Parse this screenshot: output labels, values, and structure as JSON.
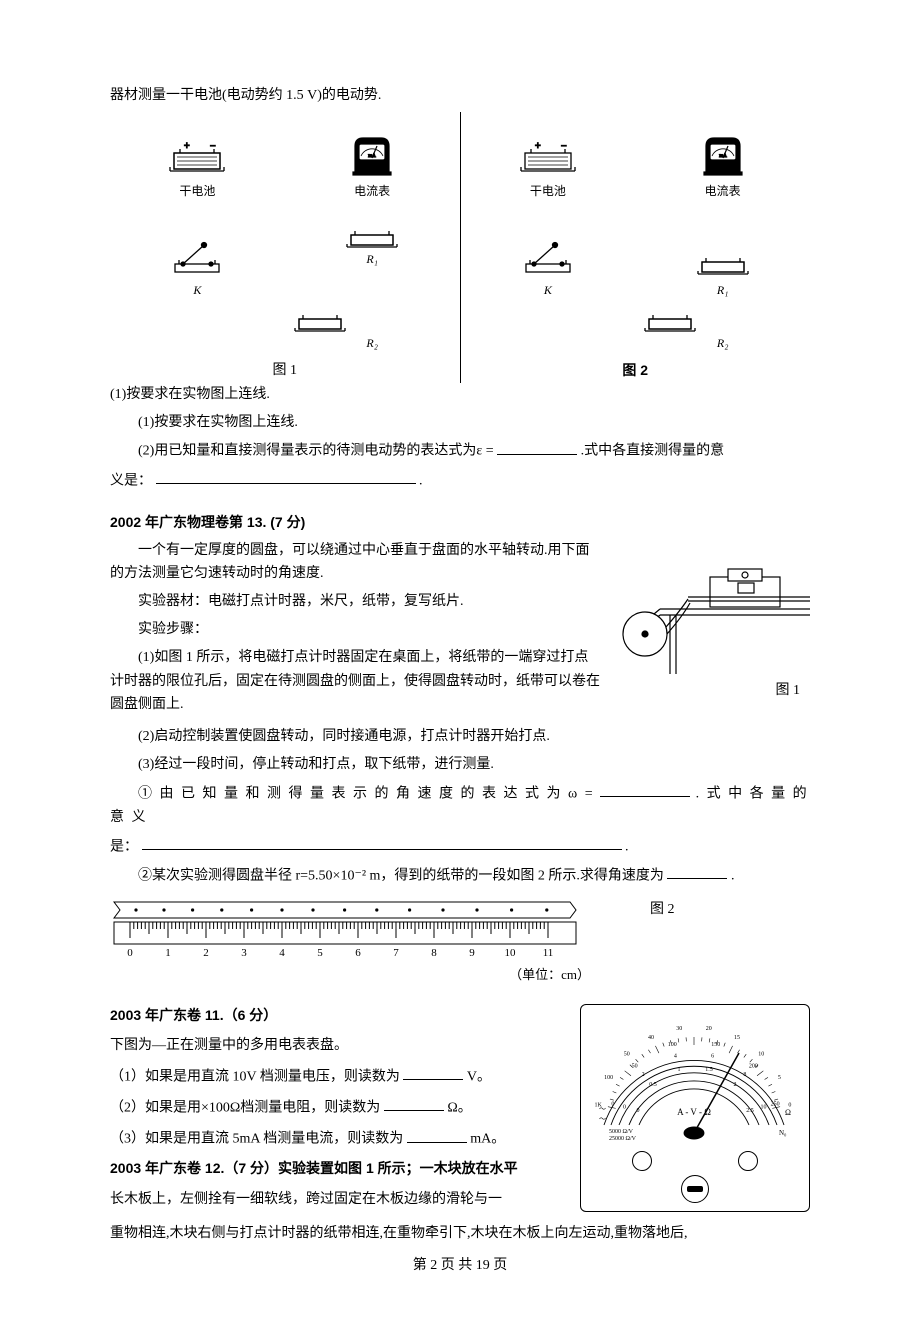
{
  "intro_line": "器材测量一干电池(电动势约 1.5 V)的电动势.",
  "equip": {
    "battery": "干电池",
    "battery_alt": "干电池",
    "ammeter": "电流表",
    "resistor1": "R₁",
    "resistor2": "R₂",
    "switch": "K",
    "fig1": "图 1",
    "fig2": "图 2"
  },
  "q1": {
    "line1_pre": "(1)按要求在实物图上连线.",
    "line2_pre": "(2)用已知量和直接测得量表示的待测电动势的表达式为ε =",
    "line2_post": ".式中各直接测得量的意",
    "line3_pre": "义是：",
    "line3_post": "."
  },
  "p2002": {
    "title": "2002 年广东物理卷第 13. (7 分)",
    "l1": "一个有一定厚度的圆盘，可以绕通过中心垂直于盘面的水平轴转动.用下面的方法测量它匀速转动时的角速度.",
    "l2": "实验器材：电磁打点计时器，米尺，纸带，复写纸片.",
    "l3": "实验步骤：",
    "l4": "(1)如图 1 所示，将电磁打点计时器固定在桌面上，将纸带的一端穿过打点计时器的限位孔后，固定在待测圆盘的侧面上，使得圆盘转动时，纸带可以卷在圆盘侧面上.",
    "fig1_caption": "图 1",
    "l5": "(2)启动控制装置使圆盘转动，同时接通电源，打点计时器开始打点.",
    "l6": "(3)经过一段时间，停止转动和打点，取下纸带，进行测量.",
    "l7_pre": "① 由 已 知 量 和 测 得 量 表 示 的 角 速 度 的 表 达 式 为 ω =",
    "l7_post": ". 式 中 各 量 的 意 义",
    "l8_pre": "是：",
    "l8_post": ".",
    "l9_pre": "②某次实验测得圆盘半径 r=5.50×10⁻² m，得到的纸带的一段如图 2 所示.求得角速度为",
    "l9_post": ".",
    "fig2_caption": "图 2",
    "ruler_unit": "（单位：cm）",
    "ruler_ticks": [
      "0",
      "1",
      "2",
      "3",
      "4",
      "5",
      "6",
      "7",
      "8",
      "9",
      "10",
      "11"
    ]
  },
  "p2003_11": {
    "title": "2003 年广东卷 11.（6 分）",
    "intro": "下图为—正在测量中的多用电表表盘。",
    "q1_pre": "（1）如果是用直流 10V 档测量电压，则读数为",
    "q1_unit": "V。",
    "q2_pre": "（2）如果是用×100Ω档测量电阻，则读数为",
    "q2_unit": "Ω。",
    "q3_pre": "（3）如果是用直流 5mA 档测量电流，则读数为",
    "q3_unit": "mA。",
    "meter_center": "A - V - Ω",
    "meter_left1": "5000 Ω/V",
    "meter_left2": "25000 Ω/V",
    "scale_top": [
      "1K",
      "100",
      "50",
      "40",
      "30",
      "20",
      "15",
      "10",
      "5",
      "0"
    ],
    "scale_mid": [
      "0",
      "50",
      "100",
      "150",
      "200",
      "250"
    ],
    "scale_v": [
      "0",
      "2",
      "4",
      "6",
      "8",
      "10"
    ],
    "scale_low": [
      "0",
      "0.5",
      "1",
      "1.5",
      "2",
      "2.5"
    ]
  },
  "p2003_12": {
    "title_pre": "2003 年广东卷 12.（7 分）实验装置如图 1 所示；一木块放在水平",
    "l2": "长木板上，左侧拴有一细软线，跨过固定在木板边缘的滑轮与一",
    "l3": "重物相连,木块右侧与打点计时器的纸带相连,在重物牵引下,木块在木板上向左运动,重物落地后,"
  },
  "footer": "第 2 页 共 19 页"
}
